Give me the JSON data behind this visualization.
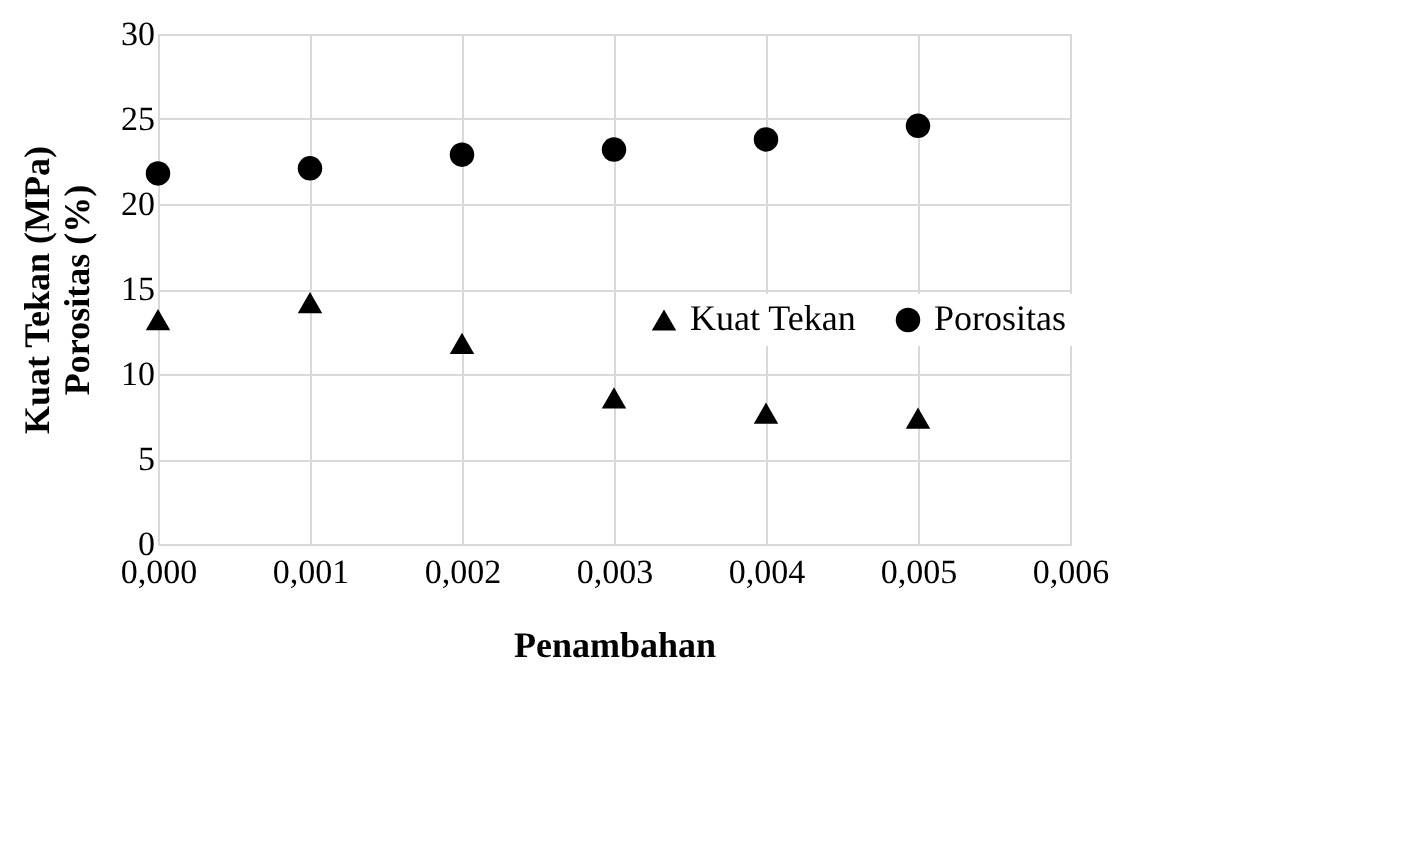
{
  "chart_data": {
    "type": "scatter",
    "xlabel": "Penambahan",
    "ylabel": "Kuat Tekan (MPa)\nPorositas (%)",
    "x": [
      0,
      0.001,
      0.002,
      0.003,
      0.004,
      0.005
    ],
    "series": [
      {
        "name": "Kuat Tekan",
        "color": "#000000",
        "marker": "triangle",
        "values": [
          13.2,
          14.2,
          11.8,
          8.6,
          7.7,
          7.4
        ]
      },
      {
        "name": "Porositas",
        "color": "#000000",
        "marker": "circle",
        "values": [
          21.8,
          22.1,
          22.9,
          23.2,
          23.8,
          24.6
        ]
      }
    ],
    "xlim": [
      0,
      0.006
    ],
    "xticks": [
      {
        "value": 0,
        "label": "0,000"
      },
      {
        "value": 0.001,
        "label": "0,001"
      },
      {
        "value": 0.002,
        "label": "0,002"
      },
      {
        "value": 0.003,
        "label": "0,003"
      },
      {
        "value": 0.004,
        "label": "0,004"
      },
      {
        "value": 0.005,
        "label": "0,005"
      },
      {
        "value": 0.006,
        "label": "0,006"
      }
    ],
    "ylim": [
      0,
      30
    ],
    "yticks": [
      0,
      5,
      10,
      15,
      20,
      25,
      30
    ],
    "grid": true,
    "legend": "right"
  }
}
